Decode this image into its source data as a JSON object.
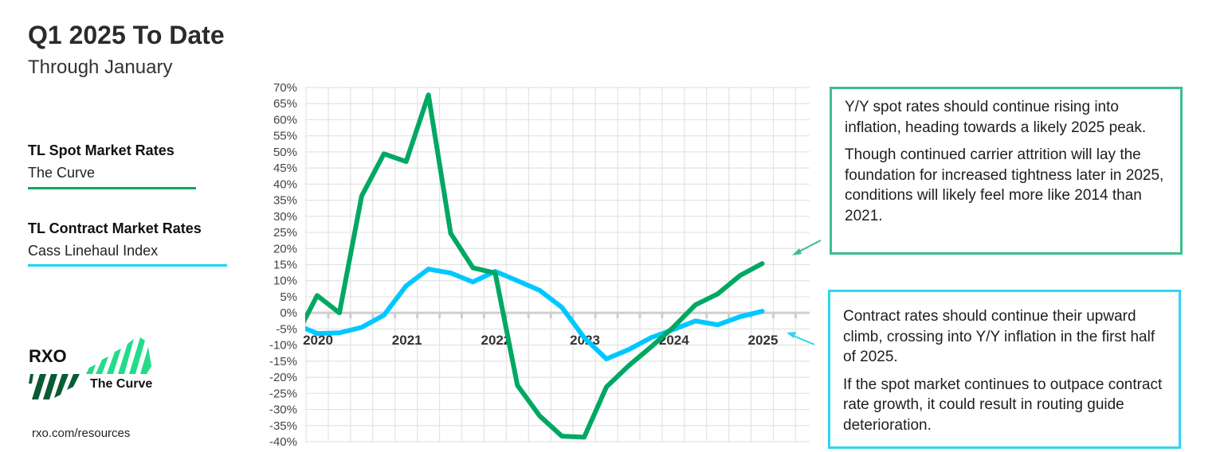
{
  "header": {
    "title": "Q1 2025 To Date",
    "subtitle": "Through January"
  },
  "legend": [
    {
      "title": "TL Spot Market Rates",
      "source": "The Curve",
      "color": "#00A862"
    },
    {
      "title": "TL Contract Market Rates",
      "source": "Cass Linehaul Index",
      "color": "#1DD3F5"
    }
  ],
  "annotations": {
    "spot": {
      "paragraphs": [
        "Y/Y spot rates should continue rising into inflation, heading towards a likely 2025 peak.",
        "Though continued carrier attrition will lay the foundation for increased tightness later in 2025, conditions will likely feel more like 2014 than 2021."
      ],
      "border_color": "#3DBE8C"
    },
    "contract": {
      "paragraphs": [
        "Contract rates should continue their upward climb, crossing into Y/Y inflation in the first half of 2025.",
        "If the spot market continues to outpace contract rate growth, it could result in routing guide deterioration."
      ],
      "border_color": "#2FD6EE"
    }
  },
  "logo": {
    "brand": "RXO",
    "product": "The Curve",
    "url": "rxo.com/resources"
  },
  "chart_data": {
    "type": "line",
    "title": "",
    "xlabel": "",
    "ylabel": "",
    "x_ticks": [
      "2020",
      "2021",
      "2022",
      "2023",
      "2024",
      "2025"
    ],
    "x_tick_values": [
      2020,
      2021,
      2022,
      2023,
      2024,
      2025
    ],
    "y_ticks": [
      "70%",
      "65%",
      "60%",
      "55%",
      "50%",
      "45%",
      "40%",
      "35%",
      "30%",
      "25%",
      "20%",
      "15%",
      "10%",
      "5%",
      "0%",
      "-5%",
      "-10%",
      "-15%",
      "-20%",
      "-25%",
      "-30%",
      "-35%",
      "-40%"
    ],
    "ylim": [
      -40,
      70
    ],
    "xlim": [
      2019.87,
      2025.53
    ],
    "grid": true,
    "x": [
      2019.75,
      2020,
      2020.25,
      2020.5,
      2020.75,
      2021,
      2021.25,
      2021.5,
      2021.75,
      2022,
      2022.25,
      2022.5,
      2022.75,
      2023,
      2023.25,
      2023.5,
      2023.75,
      2024,
      2024.25,
      2024.5,
      2024.75,
      2025
    ],
    "series": [
      {
        "name": "TL Spot Market Rates",
        "color": "#00A862",
        "values": [
          -8,
          5.4,
          0,
          36.3,
          49.4,
          47,
          67.7,
          24.7,
          14,
          12.4,
          -22.5,
          -32,
          -38.3,
          -38.6,
          -23,
          -16.4,
          -10.6,
          -4.5,
          2.5,
          5.9,
          11.6,
          15.3
        ]
      },
      {
        "name": "TL Contract Market Rates",
        "color": "#00C8FF",
        "values": [
          -3.5,
          -6.4,
          -6.2,
          -4.5,
          -0.7,
          8.4,
          13.6,
          12.4,
          9.6,
          12.9,
          10,
          7,
          1.7,
          -7.7,
          -14.3,
          -11.4,
          -7.7,
          -5.2,
          -2.5,
          -3.7,
          -1.2,
          0.5
        ]
      }
    ]
  }
}
